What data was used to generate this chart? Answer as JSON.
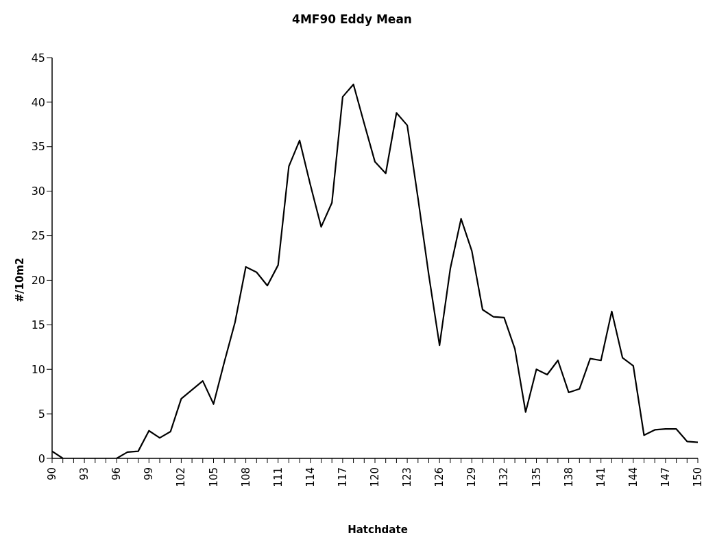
{
  "chart_data": {
    "type": "line",
    "title": "4MF90 Eddy Mean",
    "xlabel": "Hatchdate",
    "ylabel": "#/10m2",
    "x": [
      90,
      91,
      92,
      93,
      94,
      95,
      96,
      97,
      98,
      99,
      100,
      101,
      102,
      103,
      104,
      105,
      106,
      107,
      108,
      109,
      110,
      111,
      112,
      113,
      114,
      115,
      116,
      117,
      118,
      119,
      120,
      121,
      122,
      123,
      124,
      125,
      126,
      127,
      128,
      129,
      130,
      131,
      132,
      133,
      134,
      135,
      136,
      137,
      138,
      139,
      140,
      141,
      142,
      143,
      144,
      145,
      146,
      147,
      148,
      149,
      150
    ],
    "series": [
      {
        "color": "#000000",
        "values": [
          0.8,
          0,
          0,
          0,
          0,
          0,
          0,
          0.7,
          0.8,
          3.1,
          2.3,
          3.0,
          6.7,
          7.7,
          8.7,
          6.1,
          10.8,
          15.3,
          21.5,
          20.9,
          19.4,
          21.7,
          32.8,
          35.7,
          30.7,
          26.0,
          28.7,
          40.6,
          42.0,
          37.6,
          33.3,
          32.0,
          38.8,
          37.4,
          29.2,
          20.6,
          12.7,
          21.3,
          26.9,
          23.3,
          16.7,
          15.9,
          15.8,
          12.3,
          5.2,
          10.0,
          9.4,
          11.0,
          7.4,
          7.8,
          11.2,
          11.0,
          16.5,
          11.3,
          10.4,
          2.6,
          3.2,
          3.3,
          3.3,
          1.9,
          1.8
        ]
      }
    ],
    "xlim": [
      90,
      150
    ],
    "xticks": [
      90,
      {
        "value": 91,
        "label": null
      },
      {
        "value": 92,
        "label": null
      },
      93,
      {
        "value": 94,
        "label": null
      },
      {
        "value": 95,
        "label": null
      },
      96,
      {
        "value": 97,
        "label": null
      },
      {
        "value": 98,
        "label": null
      },
      99,
      {
        "value": 100,
        "label": null
      },
      {
        "value": 101,
        "label": null
      },
      102,
      {
        "value": 103,
        "label": null
      },
      {
        "value": 104,
        "label": null
      },
      105,
      {
        "value": 106,
        "label": null
      },
      {
        "value": 107,
        "label": null
      },
      108,
      {
        "value": 109,
        "label": null
      },
      {
        "value": 110,
        "label": null
      },
      111,
      {
        "value": 112,
        "label": null
      },
      {
        "value": 113,
        "label": null
      },
      114,
      {
        "value": 115,
        "label": null
      },
      {
        "value": 116,
        "label": null
      },
      117,
      {
        "value": 118,
        "label": null
      },
      {
        "value": 119,
        "label": null
      },
      120,
      {
        "value": 121,
        "label": null
      },
      {
        "value": 122,
        "label": null
      },
      123,
      {
        "value": 124,
        "label": null
      },
      {
        "value": 125,
        "label": null
      },
      126,
      {
        "value": 127,
        "label": null
      },
      {
        "value": 128,
        "label": null
      },
      129,
      {
        "value": 130,
        "label": null
      },
      {
        "value": 131,
        "label": null
      },
      132,
      {
        "value": 133,
        "label": null
      },
      {
        "value": 134,
        "label": null
      },
      135,
      {
        "value": 136,
        "label": null
      },
      {
        "value": 137,
        "label": null
      },
      138,
      {
        "value": 139,
        "label": null
      },
      {
        "value": 140,
        "label": null
      },
      141,
      {
        "value": 142,
        "label": null
      },
      {
        "value": 143,
        "label": null
      },
      144,
      {
        "value": 145,
        "label": null
      },
      {
        "value": 146,
        "label": null
      },
      147,
      {
        "value": 148,
        "label": null
      },
      {
        "value": 149,
        "label": null
      },
      150
    ],
    "ylim": [
      0,
      45
    ],
    "yticks": [
      0,
      5,
      10,
      15,
      20,
      25,
      30,
      35,
      40,
      45
    ],
    "grid": false,
    "legend": false,
    "marker": "none",
    "line_style": "solid"
  }
}
